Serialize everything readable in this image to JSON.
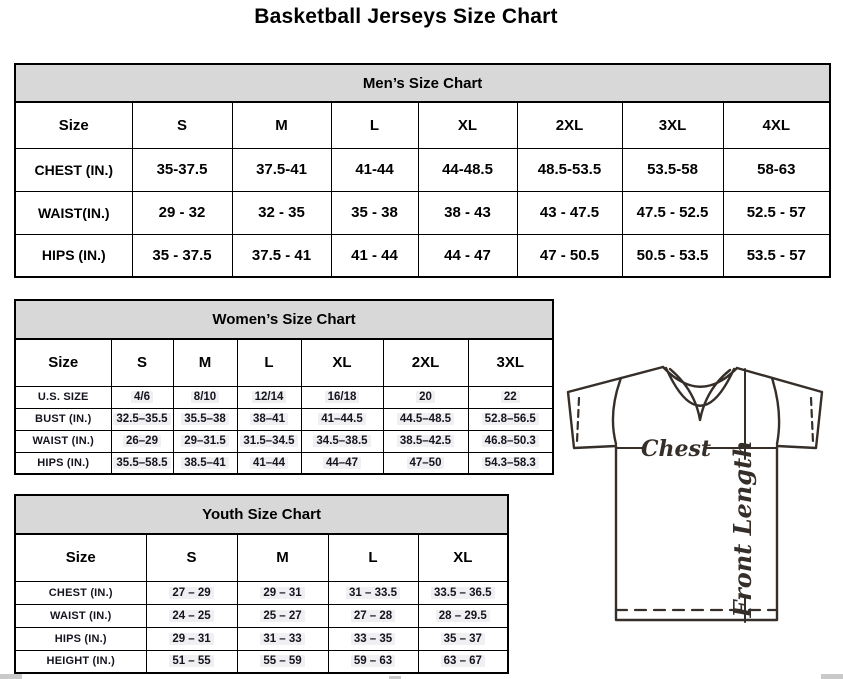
{
  "page_title": "Basketball Jerseys Size Chart",
  "mens": {
    "title": "Men’s Size Chart",
    "columns": [
      "Size",
      "S",
      "M",
      "L",
      "XL",
      "2XL",
      "3XL",
      "4XL"
    ],
    "rows": [
      {
        "label": "CHEST (IN.)",
        "values": [
          "35-37.5",
          "37.5-41",
          "41-44",
          "44-48.5",
          "48.5-53.5",
          "53.5-58",
          "58-63"
        ]
      },
      {
        "label": "WAIST(IN.)",
        "values": [
          "29 - 32",
          "32 - 35",
          "35 - 38",
          "38 - 43",
          "43 - 47.5",
          "47.5 - 52.5",
          "52.5 - 57"
        ]
      },
      {
        "label": "HIPS (IN.)",
        "values": [
          "35 - 37.5",
          "37.5 - 41",
          "41 - 44",
          "44 - 47",
          "47 - 50.5",
          "50.5 - 53.5",
          "53.5 - 57"
        ]
      }
    ]
  },
  "womens": {
    "title": "Women’s Size Chart",
    "columns": [
      "Size",
      "S",
      "M",
      "L",
      "XL",
      "2XL",
      "3XL"
    ],
    "rows": [
      {
        "label": "U.S. SIZE",
        "values": [
          "4/6",
          "8/10",
          "12/14",
          "16/18",
          "20",
          "22"
        ]
      },
      {
        "label": "BUST (IN.)",
        "values": [
          "32.5–35.5",
          "35.5–38",
          "38–41",
          "41–44.5",
          "44.5–48.5",
          "52.8–56.5"
        ]
      },
      {
        "label": "WAIST (IN.)",
        "values": [
          "26–29",
          "29–31.5",
          "31.5–34.5",
          "34.5–38.5",
          "38.5–42.5",
          "46.8–50.3"
        ]
      },
      {
        "label": "HIPS (IN.)",
        "values": [
          "35.5–58.5",
          "38.5–41",
          "41–44",
          "44–47",
          "47–50",
          "54.3–58.3"
        ]
      }
    ]
  },
  "youth": {
    "title": "Youth Size Chart",
    "columns": [
      "Size",
      "S",
      "M",
      "L",
      "XL"
    ],
    "rows": [
      {
        "label": "CHEST (IN.)",
        "values": [
          "27 – 29",
          "29 – 31",
          "31 – 33.5",
          "33.5 – 36.5"
        ]
      },
      {
        "label": "WAIST (IN.)",
        "values": [
          "24 – 25",
          "25 – 27",
          "27 – 28",
          "28 – 29.5"
        ]
      },
      {
        "label": "HIPS (IN.)",
        "values": [
          "29 – 31",
          "31 – 33",
          "33 – 35",
          "35 – 37"
        ]
      },
      {
        "label": "HEIGHT (IN.)",
        "values": [
          "51 – 55",
          "55 – 59",
          "59 – 63",
          "63 – 67"
        ]
      }
    ]
  },
  "diagram": {
    "chest_label": "Chest",
    "front_length_label": "Front Length"
  },
  "colors": {
    "header_band": "#d8d8d8",
    "table_border": "#000000",
    "data_text": "#15151f",
    "diagram_line": "#352e29"
  }
}
